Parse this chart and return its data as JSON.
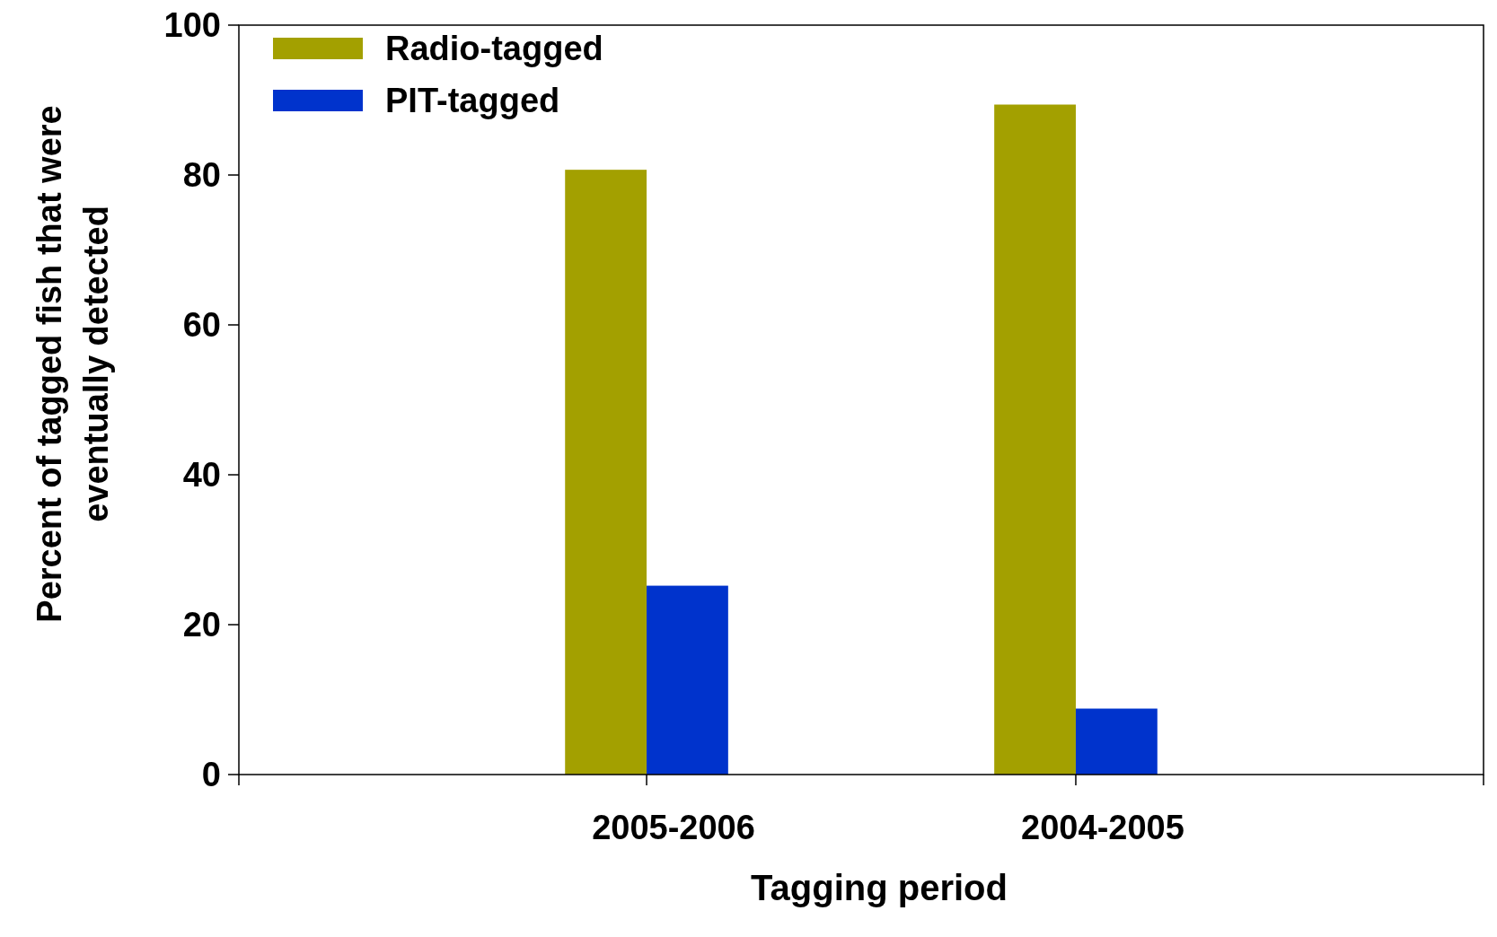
{
  "chart_data": {
    "type": "bar",
    "xlabel": "Tagging period",
    "ylabel": "Percent of tagged fish that were eventually detected",
    "categories": [
      "2005-2006",
      "2004-2005"
    ],
    "series": [
      {
        "name": "Radio-tagged",
        "color": "#a3a000",
        "values": [
          80.7,
          89.4
        ]
      },
      {
        "name": "PIT-tagged",
        "color": "#0033cc",
        "values": [
          25.2,
          8.8
        ]
      }
    ],
    "ylim": [
      0,
      100
    ],
    "yticks": [
      0,
      20,
      40,
      60,
      80,
      100
    ],
    "grid": false,
    "legend": "top left"
  }
}
